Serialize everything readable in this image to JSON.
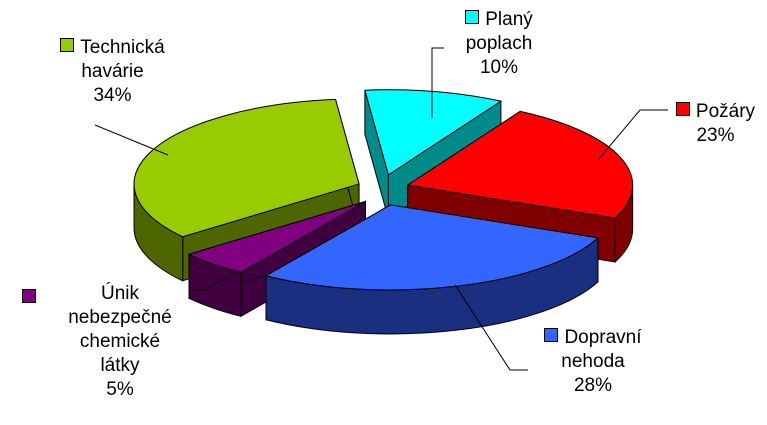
{
  "chart_data": {
    "type": "pie",
    "title": "",
    "series": [
      {
        "name": "Planý poplach",
        "label_lines": [
          "Planý",
          "poplach"
        ],
        "value": 10,
        "pct_label": "10%",
        "color": "#00FFFF",
        "dark": "#008B8B"
      },
      {
        "name": "Požáry",
        "label_lines": [
          "Požáry"
        ],
        "value": 23,
        "pct_label": "23%",
        "color": "#FF0000",
        "dark": "#800000"
      },
      {
        "name": "Dopravní nehoda",
        "label_lines": [
          "Dopravní",
          "nehoda"
        ],
        "value": 28,
        "pct_label": "28%",
        "color": "#3366FF",
        "dark": "#1A2F80"
      },
      {
        "name": "Únik nebezpečné chemické látky",
        "label_lines": [
          "Únik",
          "nebezpečné",
          "chemické",
          "látky"
        ],
        "value": 5,
        "pct_label": "5%",
        "color": "#800080",
        "dark": "#400040"
      },
      {
        "name": "Technická havárie",
        "label_lines": [
          "Technická",
          "havárie"
        ],
        "value": 34,
        "pct_label": "34%",
        "color": "#99CC00",
        "dark": "#4D6600"
      }
    ]
  }
}
